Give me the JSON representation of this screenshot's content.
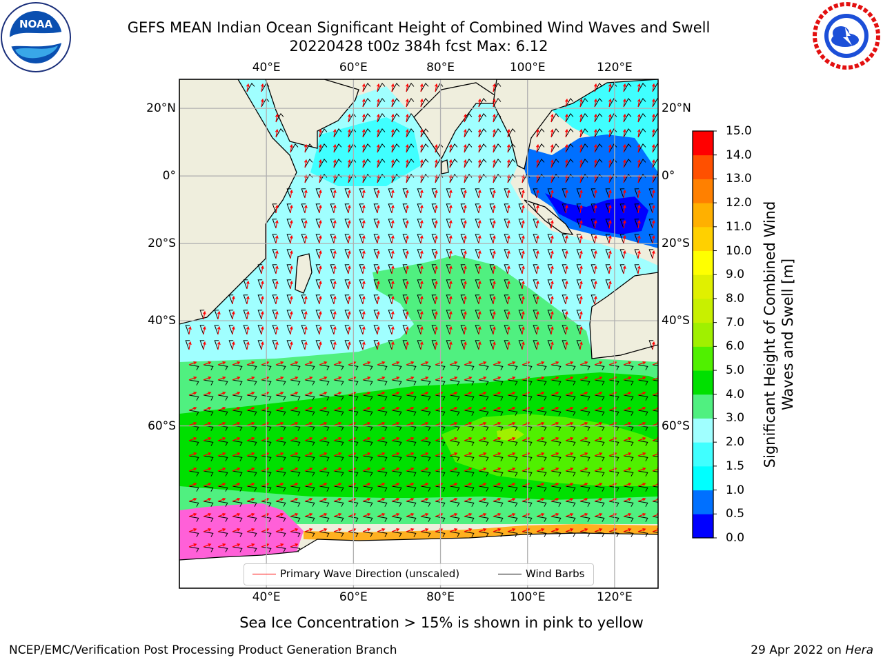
{
  "header": {
    "title_line1": "GEFS MEAN Indian Ocean Significant Height of Combined Wind Waves and Swell",
    "title_line2": "20220428 t00z 384h fcst   Max: 6.12"
  },
  "logos": {
    "noaa": {
      "name": "noaa-logo",
      "text": "NOAA",
      "ring_text": "NATIONAL OCEANIC AND ATMOSPHERIC ADMINISTRATION · U.S. DEPARTMENT OF COMMERCE"
    },
    "nws": {
      "name": "nws-logo",
      "ring_text": "NATIONAL WEATHER SERVICE"
    }
  },
  "map": {
    "lon_range": [
      20,
      130
    ],
    "lat_range": [
      -77,
      28
    ],
    "lon_ticks": [
      40,
      60,
      80,
      100,
      120
    ],
    "lon_labels": [
      "40°E",
      "60°E",
      "80°E",
      "100°E",
      "120°E"
    ],
    "lat_ticks": [
      20,
      0,
      -20,
      -40,
      -60
    ],
    "lat_labels_left": [
      "20°N",
      "0°",
      "20°S",
      "40°S",
      "60°S"
    ],
    "lat_labels_right": [
      "20°N",
      "0°",
      "20°S",
      "40°S",
      "60°S"
    ],
    "grid": true,
    "colors": {
      "land": "#efeedd",
      "coast": "#000000",
      "grid": "#b0b0b0",
      "wave_arrow": "#ff0000",
      "wind_barb": "#000000"
    }
  },
  "colorbar": {
    "label": "Significant Height of Combined Wind Waves and Swell [m]",
    "levels": [
      0.0,
      0.5,
      1.0,
      1.5,
      2.0,
      3.0,
      4.0,
      5.0,
      6.0,
      7.0,
      8.0,
      9.0,
      10.0,
      11.0,
      12.0,
      13.0,
      14.0,
      15.0
    ],
    "tick_labels": [
      "0.0",
      "0.5",
      "1.0",
      "1.5",
      "2.0",
      "3.0",
      "4.0",
      "5.0",
      "6.0",
      "7.0",
      "8.0",
      "9.0",
      "10.0",
      "11.0",
      "12.0",
      "13.0",
      "14.0",
      "15.0"
    ],
    "colors": [
      "#0000ff",
      "#0070ff",
      "#00ffff",
      "#40ffff",
      "#a0ffff",
      "#50f080",
      "#00e000",
      "#50f000",
      "#a0f000",
      "#c8f000",
      "#e0f000",
      "#ffff00",
      "#ffd000",
      "#ffb000",
      "#ff8000",
      "#ff5000",
      "#ff0000"
    ]
  },
  "legend": {
    "entries": [
      {
        "label": "Primary Wave Direction (unscaled)",
        "color": "#ff0000"
      },
      {
        "label": "Wind Barbs",
        "color": "#000000"
      }
    ]
  },
  "notes": {
    "sea_ice": "Sea Ice Concentration > 15% is shown in pink to yellow"
  },
  "footer": {
    "left": "NCEP/EMC/Verification Post Processing Product Generation Branch",
    "right_prefix": "29 Apr 2022 on ",
    "right_machine": "Hera"
  }
}
